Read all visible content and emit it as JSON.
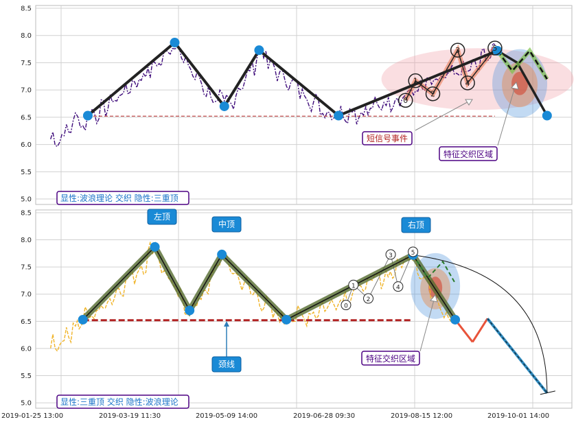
{
  "colors": {
    "top_price": "#3d0a7a",
    "bottom_price": "#f0b429",
    "wave": "#222222",
    "pivot": "#1a8ad6",
    "neck": "#b22222",
    "green": "#7cc24a",
    "olive": "#556b2f",
    "red": "#e8533a",
    "blue_dash": "#2e8bc0",
    "label_border": "#4b0082",
    "label_text_blue": "#1a73c9",
    "label_text_red": "#b22222",
    "top_badge_bg": "#1a8ad6"
  },
  "chart_data": [
    {
      "type": "line",
      "panel": "top",
      "x_ticks": [
        "2019-01-25 13:00",
        "2019-03-19 11:30",
        "2019-05-09 14:00",
        "2019-06-28 09:30",
        "2019-08-15 12:00",
        "2019-10-01 14:00"
      ],
      "y_ticks": [
        "5.0",
        "5.5",
        "6.0",
        "6.5",
        "7.0",
        "7.5",
        "8.0",
        "8.5"
      ],
      "ylim": [
        4.9,
        8.55
      ],
      "xlim": [
        -0.03,
        1.05
      ],
      "grid": true,
      "wave_points": [
        [
          0.075,
          6.53
        ],
        [
          0.25,
          7.87
        ],
        [
          0.35,
          6.7
        ],
        [
          0.42,
          7.73
        ],
        [
          0.58,
          6.53
        ],
        [
          0.9,
          7.72
        ],
        [
          0.94,
          7.5
        ],
        [
          1.0,
          6.53
        ]
      ],
      "neckline": {
        "y": 6.52,
        "x_start": 0.075,
        "x_end": 0.895
      },
      "wave_labels": [
        "0",
        "1",
        "2",
        "3",
        "4",
        "5"
      ],
      "wave_label_points": [
        [
          0.715,
          6.81
        ],
        [
          0.735,
          7.17
        ],
        [
          0.77,
          6.93
        ],
        [
          0.82,
          7.73
        ],
        [
          0.84,
          7.13
        ],
        [
          0.895,
          7.77
        ]
      ],
      "annotations": {
        "short_signal": "短信号事件",
        "feature_zone": "特征交织区域"
      },
      "caption": "显性:波浪理论 交织 隐性:三重顶"
    },
    {
      "type": "line",
      "panel": "bottom",
      "x_ticks": [
        "2019-01-25 13:00",
        "2019-03-19 11:30",
        "2019-05-09 14:00",
        "2019-06-28 09:30",
        "2019-08-15 12:00",
        "2019-10-01 14:00"
      ],
      "y_ticks": [
        "5.0",
        "5.5",
        "6.0",
        "6.5",
        "7.0",
        "7.5",
        "8.0",
        "8.5"
      ],
      "ylim": [
        4.9,
        8.55
      ],
      "xlim": [
        -0.03,
        1.05
      ],
      "grid": true,
      "wave_points": [
        [
          0.065,
          6.53
        ],
        [
          0.21,
          7.87
        ],
        [
          0.28,
          6.7
        ],
        [
          0.345,
          7.73
        ],
        [
          0.475,
          6.53
        ],
        [
          0.73,
          7.72
        ],
        [
          0.815,
          6.53
        ]
      ],
      "projection_points": [
        [
          0.815,
          6.53
        ],
        [
          0.85,
          6.12
        ],
        [
          0.88,
          6.55
        ],
        [
          1.0,
          5.18
        ]
      ],
      "neckline": {
        "y": 6.52,
        "x_start": 0.065,
        "x_end": 0.73
      },
      "wave_labels": [
        "0",
        "1",
        "2",
        "3",
        "4",
        "5"
      ],
      "wave_label_points": [
        [
          0.595,
          6.8
        ],
        [
          0.61,
          7.17
        ],
        [
          0.64,
          6.92
        ],
        [
          0.685,
          7.73
        ],
        [
          0.7,
          7.14
        ],
        [
          0.73,
          7.78
        ]
      ],
      "top_labels": [
        "左顶",
        "中顶",
        "右顶"
      ],
      "annotations": {
        "neck": "颈线",
        "feature_zone": "特征交织区域"
      },
      "caption": "显性:三重顶 交织 隐性:波浪理论"
    }
  ]
}
